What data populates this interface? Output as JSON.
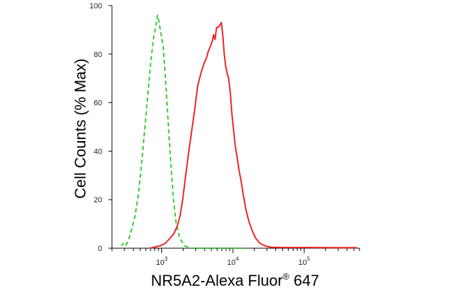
{
  "chart_data": {
    "type": "line",
    "title": "",
    "xlabel": {
      "main": "NR5A2-Alexa Fluor",
      "superscript": "®",
      "tail": " 647"
    },
    "ylabel": "Cell Counts (% Max)",
    "x_scale": "log",
    "xlim": [
      200,
      600000
    ],
    "ylim": [
      0,
      100
    ],
    "y_ticks": [
      0,
      20,
      40,
      60,
      80,
      100
    ],
    "x_ticks": [
      {
        "value": 1000,
        "base": "10",
        "exp": "3"
      },
      {
        "value": 10000,
        "base": "10",
        "exp": "4"
      },
      {
        "value": 100000,
        "base": "10",
        "exp": "5"
      }
    ],
    "grid": false,
    "series": [
      {
        "color": "#33cc33",
        "style": "dashed",
        "points": [
          [
            270,
            1
          ],
          [
            290,
            2
          ],
          [
            310,
            1
          ],
          [
            340,
            3
          ],
          [
            380,
            8
          ],
          [
            420,
            13
          ],
          [
            470,
            22
          ],
          [
            530,
            37
          ],
          [
            590,
            52
          ],
          [
            650,
            66
          ],
          [
            710,
            78
          ],
          [
            770,
            87
          ],
          [
            830,
            92
          ],
          [
            870,
            96
          ],
          [
            920,
            93
          ],
          [
            980,
            88
          ],
          [
            1050,
            83
          ],
          [
            1130,
            70
          ],
          [
            1230,
            52
          ],
          [
            1340,
            35
          ],
          [
            1460,
            20
          ],
          [
            1600,
            10
          ],
          [
            1800,
            4
          ],
          [
            2100,
            1
          ],
          [
            2600,
            0
          ],
          [
            4000,
            0
          ],
          [
            9000,
            0
          ],
          [
            15000,
            0
          ]
        ]
      },
      {
        "color": "#ee2222",
        "style": "solid",
        "points": [
          [
            680,
            0
          ],
          [
            800,
            0.5
          ],
          [
            950,
            1
          ],
          [
            1120,
            2
          ],
          [
            1300,
            4
          ],
          [
            1480,
            6
          ],
          [
            1650,
            9
          ],
          [
            1800,
            13
          ],
          [
            1970,
            20
          ],
          [
            2150,
            29
          ],
          [
            2350,
            38
          ],
          [
            2600,
            47
          ],
          [
            2900,
            57
          ],
          [
            3200,
            67
          ],
          [
            3550,
            72
          ],
          [
            3900,
            76
          ],
          [
            4200,
            78
          ],
          [
            4500,
            81
          ],
          [
            4800,
            83
          ],
          [
            5100,
            85
          ],
          [
            5350,
            88
          ],
          [
            5600,
            86
          ],
          [
            5900,
            91
          ],
          [
            6200,
            91
          ],
          [
            6550,
            92
          ],
          [
            6900,
            93
          ],
          [
            7200,
            88
          ],
          [
            7550,
            80
          ],
          [
            7900,
            75
          ],
          [
            8300,
            72
          ],
          [
            8700,
            70
          ],
          [
            9200,
            64
          ],
          [
            9700,
            55
          ],
          [
            10200,
            49
          ],
          [
            10800,
            42
          ],
          [
            11500,
            37
          ],
          [
            12200,
            32
          ],
          [
            13000,
            28
          ],
          [
            14000,
            22
          ],
          [
            15200,
            16
          ],
          [
            16800,
            11
          ],
          [
            18800,
            7
          ],
          [
            21000,
            4
          ],
          [
            24000,
            2
          ],
          [
            28000,
            1
          ],
          [
            34000,
            0.4
          ],
          [
            50000,
            0.3
          ],
          [
            120000,
            0.3
          ],
          [
            300000,
            0.2
          ],
          [
            550000,
            0.2
          ]
        ]
      }
    ]
  }
}
